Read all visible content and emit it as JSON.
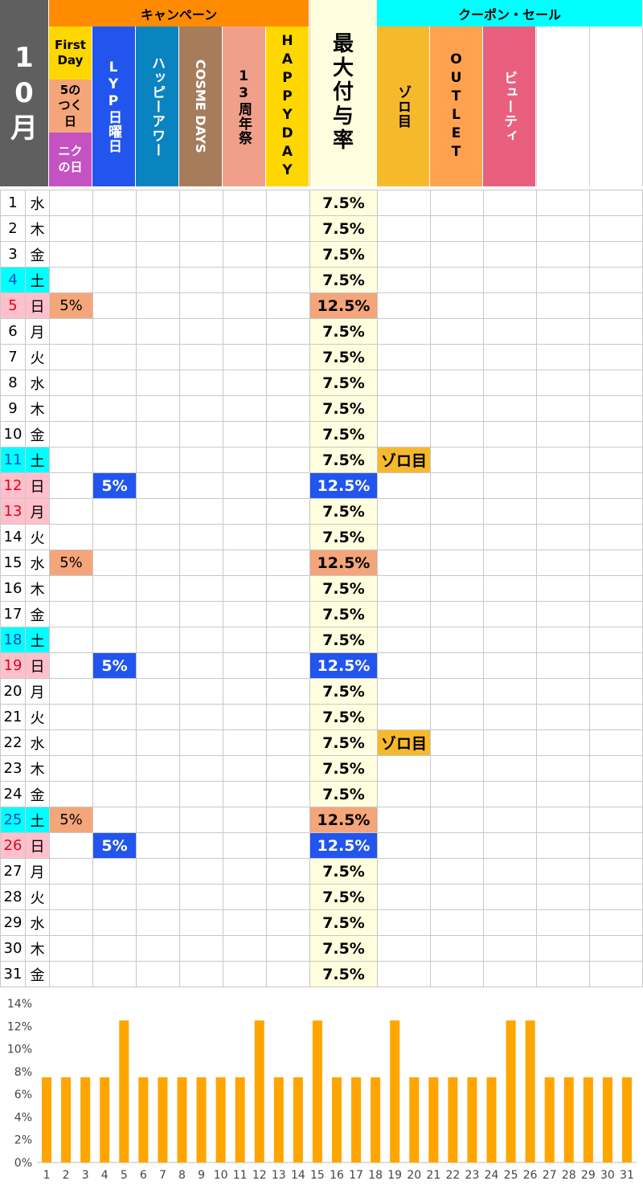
{
  "header": {
    "month": "10月",
    "campaign_group": "キャンペーン",
    "coupon_group": "クーポン・セール",
    "first_day": "First Day",
    "five_day": "5のつく日",
    "niku_day": "ニクの日",
    "lyp_sunday": "LYP日曜日",
    "happy_hour": "ハッピーアワー",
    "cosme_days": "COSME DAYS",
    "anniversary": "13周年祭",
    "happy_day": "HAPPYDAY",
    "max_rate": "最大付与率",
    "zorome": "ゾロ目",
    "outlet": "OUTLET",
    "beauty": "ビューティ"
  },
  "colors": {
    "month_bg": "#5f5f5f",
    "campaign_orange": "#ff8c00",
    "coupon_cyan": "#00ffff",
    "first_day": "#ffd700",
    "five_day": "#f4a57a",
    "niku_day": "#c552c2",
    "lyp": "#2255ee",
    "happy_hour": "#0a84c1",
    "cosme": "#a67c5b",
    "anniversary": "#f0a08a",
    "happy_day": "#ffd700",
    "max_rate_bg": "#ffffe0",
    "zorome": "#f7b92c",
    "outlet": "#ffa24f",
    "beauty": "#e9607e",
    "saturday": "#00ffff",
    "sunday": "#ffc0cb",
    "bar": "#ffa500"
  },
  "rows": [
    {
      "day": "1",
      "dow": "水",
      "type": "",
      "five": "",
      "lyp": "",
      "rate": "7.5%",
      "rate_type": "",
      "zorome": ""
    },
    {
      "day": "2",
      "dow": "木",
      "type": "",
      "five": "",
      "lyp": "",
      "rate": "7.5%",
      "rate_type": "",
      "zorome": ""
    },
    {
      "day": "3",
      "dow": "金",
      "type": "",
      "five": "",
      "lyp": "",
      "rate": "7.5%",
      "rate_type": "",
      "zorome": ""
    },
    {
      "day": "4",
      "dow": "土",
      "type": "sat",
      "five": "",
      "lyp": "",
      "rate": "7.5%",
      "rate_type": "",
      "zorome": ""
    },
    {
      "day": "5",
      "dow": "日",
      "type": "sun",
      "five": "5%",
      "lyp": "",
      "rate": "12.5%",
      "rate_type": "five",
      "zorome": ""
    },
    {
      "day": "6",
      "dow": "月",
      "type": "",
      "five": "",
      "lyp": "",
      "rate": "7.5%",
      "rate_type": "",
      "zorome": ""
    },
    {
      "day": "7",
      "dow": "火",
      "type": "",
      "five": "",
      "lyp": "",
      "rate": "7.5%",
      "rate_type": "",
      "zorome": ""
    },
    {
      "day": "8",
      "dow": "水",
      "type": "",
      "five": "",
      "lyp": "",
      "rate": "7.5%",
      "rate_type": "",
      "zorome": ""
    },
    {
      "day": "9",
      "dow": "木",
      "type": "",
      "five": "",
      "lyp": "",
      "rate": "7.5%",
      "rate_type": "",
      "zorome": ""
    },
    {
      "day": "10",
      "dow": "金",
      "type": "",
      "five": "",
      "lyp": "",
      "rate": "7.5%",
      "rate_type": "",
      "zorome": ""
    },
    {
      "day": "11",
      "dow": "土",
      "type": "sat",
      "five": "",
      "lyp": "",
      "rate": "7.5%",
      "rate_type": "",
      "zorome": "ゾロ目"
    },
    {
      "day": "12",
      "dow": "日",
      "type": "sun",
      "five": "",
      "lyp": "5%",
      "rate": "12.5%",
      "rate_type": "lyp",
      "zorome": ""
    },
    {
      "day": "13",
      "dow": "月",
      "type": "sun",
      "five": "",
      "lyp": "",
      "rate": "7.5%",
      "rate_type": "",
      "zorome": ""
    },
    {
      "day": "14",
      "dow": "火",
      "type": "",
      "five": "",
      "lyp": "",
      "rate": "7.5%",
      "rate_type": "",
      "zorome": ""
    },
    {
      "day": "15",
      "dow": "水",
      "type": "",
      "five": "5%",
      "lyp": "",
      "rate": "12.5%",
      "rate_type": "five",
      "zorome": ""
    },
    {
      "day": "16",
      "dow": "木",
      "type": "",
      "five": "",
      "lyp": "",
      "rate": "7.5%",
      "rate_type": "",
      "zorome": ""
    },
    {
      "day": "17",
      "dow": "金",
      "type": "",
      "five": "",
      "lyp": "",
      "rate": "7.5%",
      "rate_type": "",
      "zorome": ""
    },
    {
      "day": "18",
      "dow": "土",
      "type": "sat",
      "five": "",
      "lyp": "",
      "rate": "7.5%",
      "rate_type": "",
      "zorome": ""
    },
    {
      "day": "19",
      "dow": "日",
      "type": "sun",
      "five": "",
      "lyp": "5%",
      "rate": "12.5%",
      "rate_type": "lyp",
      "zorome": ""
    },
    {
      "day": "20",
      "dow": "月",
      "type": "",
      "five": "",
      "lyp": "",
      "rate": "7.5%",
      "rate_type": "",
      "zorome": ""
    },
    {
      "day": "21",
      "dow": "火",
      "type": "",
      "five": "",
      "lyp": "",
      "rate": "7.5%",
      "rate_type": "",
      "zorome": ""
    },
    {
      "day": "22",
      "dow": "水",
      "type": "",
      "five": "",
      "lyp": "",
      "rate": "7.5%",
      "rate_type": "",
      "zorome": "ゾロ目"
    },
    {
      "day": "23",
      "dow": "木",
      "type": "",
      "five": "",
      "lyp": "",
      "rate": "7.5%",
      "rate_type": "",
      "zorome": ""
    },
    {
      "day": "24",
      "dow": "金",
      "type": "",
      "five": "",
      "lyp": "",
      "rate": "7.5%",
      "rate_type": "",
      "zorome": ""
    },
    {
      "day": "25",
      "dow": "土",
      "type": "sat",
      "five": "5%",
      "lyp": "",
      "rate": "12.5%",
      "rate_type": "five",
      "zorome": ""
    },
    {
      "day": "26",
      "dow": "日",
      "type": "sun",
      "five": "",
      "lyp": "5%",
      "rate": "12.5%",
      "rate_type": "lyp",
      "zorome": ""
    },
    {
      "day": "27",
      "dow": "月",
      "type": "",
      "five": "",
      "lyp": "",
      "rate": "7.5%",
      "rate_type": "",
      "zorome": ""
    },
    {
      "day": "28",
      "dow": "火",
      "type": "",
      "five": "",
      "lyp": "",
      "rate": "7.5%",
      "rate_type": "",
      "zorome": ""
    },
    {
      "day": "29",
      "dow": "水",
      "type": "",
      "five": "",
      "lyp": "",
      "rate": "7.5%",
      "rate_type": "",
      "zorome": ""
    },
    {
      "day": "30",
      "dow": "木",
      "type": "",
      "five": "",
      "lyp": "",
      "rate": "7.5%",
      "rate_type": "",
      "zorome": ""
    },
    {
      "day": "31",
      "dow": "金",
      "type": "",
      "five": "",
      "lyp": "",
      "rate": "7.5%",
      "rate_type": "",
      "zorome": ""
    }
  ],
  "chart_data": {
    "type": "bar",
    "categories": [
      "1",
      "2",
      "3",
      "4",
      "5",
      "6",
      "7",
      "8",
      "9",
      "10",
      "11",
      "12",
      "13",
      "14",
      "15",
      "16",
      "17",
      "18",
      "19",
      "20",
      "21",
      "22",
      "23",
      "24",
      "25",
      "26",
      "27",
      "28",
      "29",
      "30",
      "31"
    ],
    "values": [
      7.5,
      7.5,
      7.5,
      7.5,
      12.5,
      7.5,
      7.5,
      7.5,
      7.5,
      7.5,
      7.5,
      12.5,
      7.5,
      7.5,
      12.5,
      7.5,
      7.5,
      7.5,
      12.5,
      7.5,
      7.5,
      7.5,
      7.5,
      7.5,
      12.5,
      12.5,
      7.5,
      7.5,
      7.5,
      7.5,
      7.5
    ],
    "ylim": [
      0,
      14
    ],
    "yticks": [
      "0%",
      "2%",
      "4%",
      "6%",
      "8%",
      "10%",
      "12%",
      "14%"
    ],
    "grid": false
  }
}
